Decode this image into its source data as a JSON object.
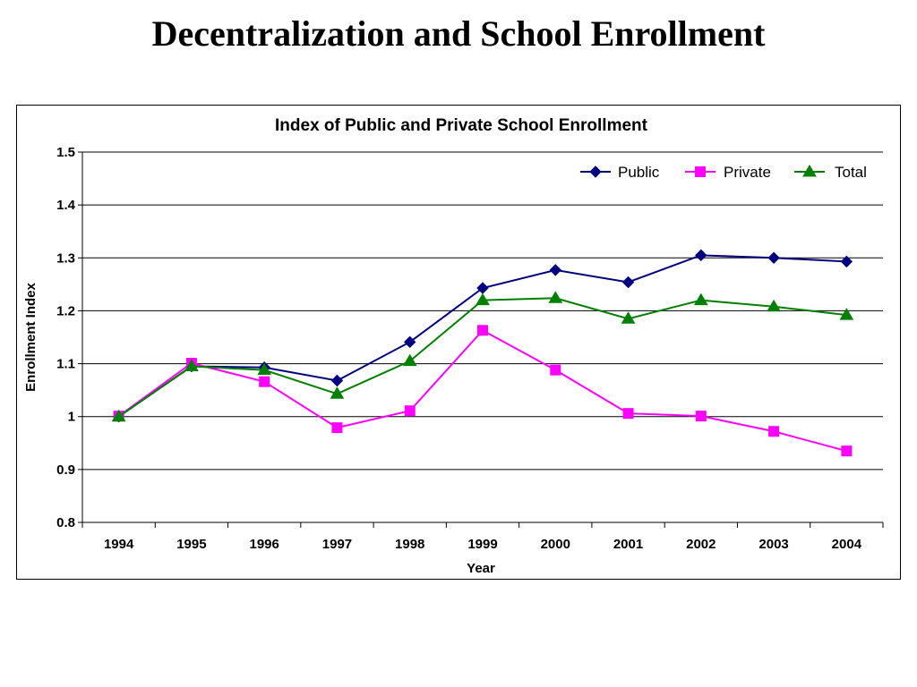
{
  "slide": {
    "title": "Decentralization and School Enrollment"
  },
  "chart_data": {
    "type": "line",
    "title": "Index of Public and Private School Enrollment",
    "xlabel": "Year",
    "ylabel": "Enrollment Index",
    "categories": [
      "1994",
      "1995",
      "1996",
      "1997",
      "1998",
      "1999",
      "2000",
      "2001",
      "2002",
      "2003",
      "2004"
    ],
    "ylim": [
      0.8,
      1.5
    ],
    "yticks": [
      0.8,
      0.9,
      1,
      1.1,
      1.2,
      1.3,
      1.4,
      1.5
    ],
    "ytick_labels": [
      "0.8",
      "0.9",
      "1",
      "1.1",
      "1.2",
      "1.3",
      "1.4",
      "1.5"
    ],
    "grid": true,
    "legend_position": "top-right",
    "series": [
      {
        "name": "Public",
        "color": "#000080",
        "marker": "diamond",
        "values": [
          1.0,
          1.095,
          1.093,
          1.068,
          1.141,
          1.243,
          1.277,
          1.254,
          1.305,
          1.3,
          1.293
        ]
      },
      {
        "name": "Private",
        "color": "#FF00FF",
        "marker": "square",
        "values": [
          1.001,
          1.101,
          1.066,
          0.979,
          1.011,
          1.163,
          1.088,
          1.006,
          1.001,
          0.972,
          0.935
        ]
      },
      {
        "name": "Total",
        "color": "#008000",
        "marker": "triangle",
        "values": [
          1.0,
          1.095,
          1.088,
          1.043,
          1.105,
          1.22,
          1.224,
          1.185,
          1.22,
          1.208,
          1.192
        ]
      }
    ]
  }
}
